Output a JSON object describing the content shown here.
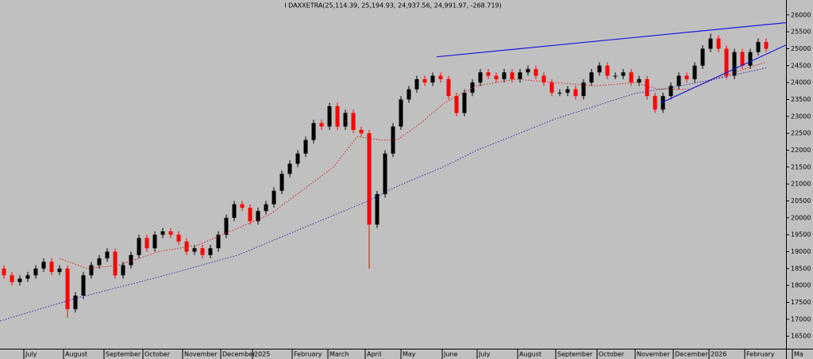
{
  "chart_data": {
    "type": "candlestick",
    "title": "I DAXXETRA(25,114.39, 25,194.93, 24,937.56, 24,991.97, -268.719)",
    "up_color": "#000000",
    "down_color": "#ff0000",
    "x": [
      0,
      1,
      2,
      3,
      4,
      5,
      6,
      7,
      8,
      9,
      10,
      11,
      12,
      13,
      14,
      15,
      16,
      17,
      18,
      19,
      20,
      21,
      22,
      23,
      24,
      25,
      26,
      27,
      28,
      29,
      30,
      31,
      32,
      33,
      34,
      35,
      36,
      37,
      38,
      39,
      40,
      41,
      42,
      43,
      44,
      45,
      46,
      47,
      48,
      49,
      50,
      51,
      52,
      53,
      54,
      55,
      56,
      57,
      58,
      59,
      60,
      61,
      62,
      63,
      64,
      65,
      66,
      67,
      68,
      69,
      70,
      71,
      72,
      73,
      74,
      75,
      76,
      77,
      78,
      79,
      80,
      81,
      82,
      83,
      84,
      85,
      86,
      87,
      88,
      89,
      90,
      91,
      92,
      93,
      94,
      95,
      96
    ],
    "open": [
      18500,
      18300,
      18100,
      18200,
      18300,
      18500,
      18700,
      18400,
      18500,
      17300,
      17700,
      18300,
      18600,
      18800,
      19000,
      18300,
      18600,
      18900,
      19400,
      19100,
      19500,
      19600,
      19500,
      19300,
      19000,
      19100,
      18900,
      19100,
      19500,
      20000,
      20400,
      20300,
      19900,
      20200,
      20400,
      20800,
      21300,
      21600,
      21900,
      22300,
      22800,
      22700,
      23300,
      22700,
      23100,
      22600,
      22500,
      19800,
      20700,
      21900,
      22700,
      23500,
      23800,
      24100,
      24000,
      24200,
      24100,
      23600,
      23100,
      23700,
      24000,
      24300,
      24200,
      24100,
      24300,
      24100,
      24300,
      24400,
      24200,
      24000,
      23700,
      23700,
      23800,
      23600,
      24000,
      24300,
      24500,
      24200,
      24200,
      24300,
      24000,
      24100,
      23600,
      23200,
      23600,
      23900,
      24200,
      24100,
      24500,
      25000,
      25300,
      25000,
      24200,
      24900,
      24500,
      24900,
      25200
    ],
    "high": [
      18600,
      18400,
      18300,
      18400,
      18600,
      18800,
      18800,
      18600,
      18600,
      17800,
      18400,
      18700,
      18900,
      19100,
      19100,
      18700,
      19000,
      19500,
      19500,
      19600,
      19700,
      19700,
      19600,
      19400,
      19200,
      19200,
      19200,
      19600,
      20100,
      20500,
      20500,
      20400,
      20300,
      20500,
      20900,
      21400,
      21700,
      22000,
      22400,
      22900,
      22900,
      23400,
      23400,
      23200,
      23200,
      22700,
      22600,
      20800,
      22000,
      22800,
      23600,
      23900,
      24200,
      24200,
      24300,
      24300,
      24200,
      23700,
      23800,
      24100,
      24400,
      24400,
      24300,
      24400,
      24400,
      24400,
      24500,
      24500,
      24300,
      24100,
      23800,
      23900,
      23900,
      24100,
      24400,
      24600,
      24600,
      24300,
      24400,
      24400,
      24200,
      24200,
      23700,
      23700,
      24000,
      24300,
      24300,
      24600,
      25100,
      25450,
      25400,
      25100,
      25000,
      25000,
      25000,
      25300,
      25300
    ],
    "low": [
      18200,
      18000,
      18000,
      18100,
      18200,
      18400,
      18300,
      18300,
      17050,
      17200,
      17600,
      18200,
      18500,
      18700,
      18200,
      18200,
      18500,
      18800,
      19000,
      19000,
      19400,
      19400,
      19200,
      18900,
      18900,
      18800,
      18800,
      19000,
      19400,
      19900,
      20200,
      19800,
      19800,
      20100,
      20300,
      20700,
      21200,
      21500,
      21800,
      22200,
      22600,
      22600,
      22600,
      22600,
      22500,
      22400,
      18500,
      19700,
      20600,
      21800,
      22600,
      23400,
      23700,
      23900,
      23900,
      24000,
      23500,
      23000,
      23000,
      23600,
      23900,
      24100,
      24000,
      24000,
      24000,
      24000,
      24200,
      24100,
      23900,
      23600,
      23600,
      23600,
      23500,
      23500,
      23900,
      24200,
      24100,
      24100,
      24100,
      23900,
      23900,
      23500,
      23100,
      23100,
      23500,
      23800,
      24000,
      24000,
      24400,
      24900,
      24900,
      24100,
      24100,
      24400,
      24400,
      24800,
      24900
    ],
    "close": [
      18300,
      18100,
      18200,
      18300,
      18500,
      18700,
      18400,
      18500,
      17300,
      17700,
      18300,
      18600,
      18800,
      19000,
      18300,
      18600,
      18900,
      19400,
      19100,
      19500,
      19600,
      19500,
      19300,
      19000,
      19100,
      18900,
      19100,
      19500,
      20000,
      20400,
      20300,
      19900,
      20200,
      20400,
      20800,
      21300,
      21600,
      21900,
      22300,
      22800,
      22700,
      23300,
      22700,
      23100,
      22600,
      22500,
      19800,
      20700,
      21900,
      22700,
      23500,
      23800,
      24100,
      24000,
      24200,
      24100,
      23600,
      23100,
      23700,
      24000,
      24300,
      24200,
      24100,
      24300,
      24100,
      24300,
      24400,
      24200,
      24000,
      23700,
      23700,
      23800,
      23600,
      24000,
      24300,
      24500,
      24200,
      24200,
      24300,
      24000,
      24100,
      23600,
      23200,
      23600,
      23900,
      24200,
      24100,
      24500,
      25000,
      25300,
      25000,
      24200,
      24900,
      24500,
      24900,
      25200,
      25000
    ],
    "lines": [
      {
        "color": "#e02020",
        "dash": "1.5 2",
        "x": [
          7,
          10.5,
          14.5,
          19.5,
          24.5,
          29.5,
          33.5,
          37.5,
          41.5,
          44.5,
          47.5,
          49.5,
          52.5,
          55.5,
          59.5,
          64.5,
          69.5,
          74.5,
          79.5,
          82.5,
          86.5,
          89.5,
          94.5,
          96
        ],
        "values": [
          18800,
          18500,
          18600,
          19000,
          19200,
          19700,
          20100,
          20800,
          21500,
          22400,
          22300,
          22300,
          22800,
          23400,
          23900,
          24100,
          24000,
          23900,
          24000,
          23800,
          23800,
          24100,
          24500,
          24600
        ]
      },
      {
        "color": "#3030b0",
        "dash": "1.5 2",
        "x": [
          -0.5,
          9.5,
          19.5,
          29.5,
          39.5,
          45.5,
          49.5,
          55.5,
          59.5,
          69.5,
          79.5,
          84.5,
          89.5,
          96
        ],
        "values": [
          16950,
          17650,
          18250,
          18900,
          19880,
          20460,
          20930,
          21520,
          21990,
          22930,
          23680,
          23870,
          24100,
          24430
        ]
      },
      {
        "color": "#1c1ce0",
        "x": [
          54.5,
          98.5
        ],
        "values": [
          24760,
          25770
        ]
      },
      {
        "color": "#1c1ce0",
        "x": [
          82.8,
          98.5
        ],
        "values": [
          23400,
          25110
        ]
      }
    ],
    "xlim": [
      -0.5,
      98.5
    ],
    "xticks": [
      {
        "value": 2.5,
        "label": "July"
      },
      {
        "value": 7.5,
        "label": "August"
      },
      {
        "value": 12.6,
        "label": "September"
      },
      {
        "value": 17.5,
        "label": "October"
      },
      {
        "value": 22.5,
        "label": "November"
      },
      {
        "value": 27.3,
        "label": "December"
      },
      {
        "value": 31.3,
        "label": "2025"
      },
      {
        "value": 36.3,
        "label": "February"
      },
      {
        "value": 40.8,
        "label": "March"
      },
      {
        "value": 45.5,
        "label": "April"
      },
      {
        "value": 50,
        "label": "May"
      },
      {
        "value": 55.2,
        "label": "June"
      },
      {
        "value": 59.6,
        "label": "July"
      },
      {
        "value": 64.7,
        "label": "August"
      },
      {
        "value": 69.5,
        "label": "September"
      },
      {
        "value": 74.7,
        "label": "October"
      },
      {
        "value": 79.5,
        "label": "November"
      },
      {
        "value": 84.3,
        "label": "December"
      },
      {
        "value": 88.8,
        "label": "2026"
      },
      {
        "value": 93.3,
        "label": "February"
      },
      {
        "value": 99.3,
        "label": "Ma"
      }
    ],
    "ylim": [
      16130,
      26440
    ],
    "yticks": [
      16500,
      17000,
      17500,
      18000,
      18500,
      19000,
      19500,
      20000,
      20500,
      21000,
      21500,
      22000,
      22500,
      23000,
      23500,
      24000,
      24500,
      25000,
      25500,
      26000
    ]
  }
}
